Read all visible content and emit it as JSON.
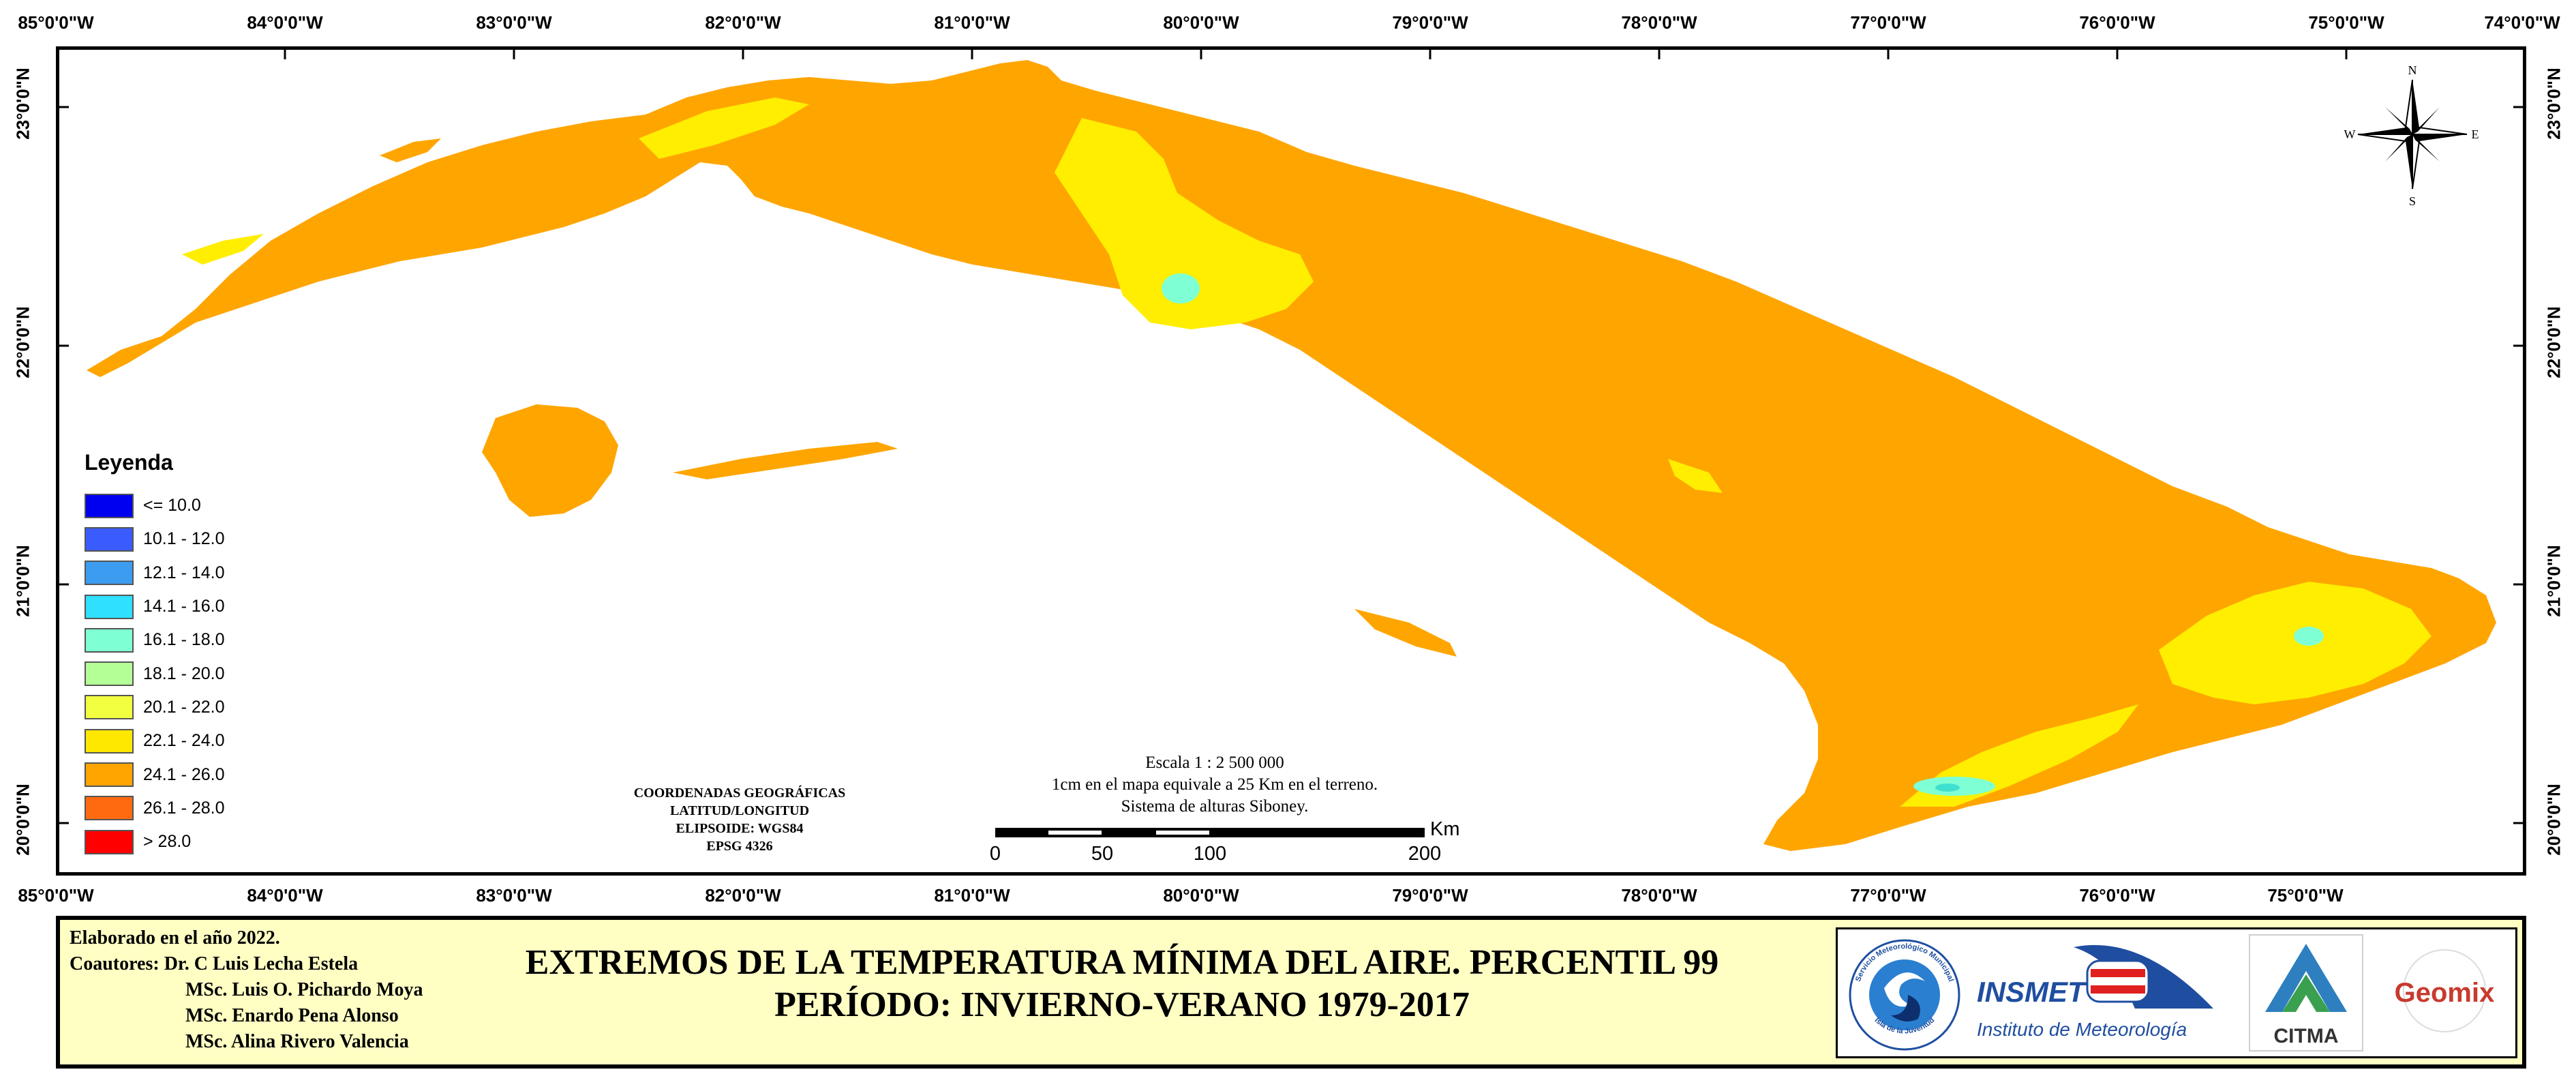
{
  "map": {
    "top_longitudes": [
      "85°0'0\"W",
      "84°0'0\"W",
      "83°0'0\"W",
      "82°0'0\"W",
      "81°0'0\"W",
      "80°0'0\"W",
      "79°0'0\"W",
      "78°0'0\"W",
      "77°0'0\"W",
      "76°0'0\"W",
      "75°0'0\"W",
      "74°0'0\"W"
    ],
    "bottom_longitudes": [
      "85°0'0\"W",
      "84°0'0\"W",
      "83°0'0\"W",
      "82°0'0\"W",
      "81°0'0\"W",
      "80°0'0\"W",
      "79°0'0\"W",
      "78°0'0\"W",
      "77°0'0\"W",
      "76°0'0\"W",
      "75°0'0\"W"
    ],
    "latitudes": [
      "23°0'0\"N",
      "22°0'0\"N",
      "21°0'0\"N",
      "20°0'0\"N"
    ],
    "colors": {
      "land_base": "#ffa500",
      "land_highland": "#ffee00",
      "land_cool": "#7fffd4",
      "land_coolest": "#40e0d0",
      "water": "#ffffff",
      "frame": "#000000"
    },
    "north_arrow": {
      "n": "N",
      "s": "S",
      "e": "E",
      "w": "W",
      "icon": "compass-rose-icon"
    }
  },
  "legend": {
    "title": "Leyenda",
    "items": [
      {
        "label": "<= 10.0",
        "color": "#0000f0"
      },
      {
        "label": "10.1 - 12.0",
        "color": "#3a5cff"
      },
      {
        "label": "12.1 - 14.0",
        "color": "#3c9cf0"
      },
      {
        "label": "14.1 - 16.0",
        "color": "#30e0ff"
      },
      {
        "label": "16.1 - 18.0",
        "color": "#7fffd4"
      },
      {
        "label": "18.1 - 20.0",
        "color": "#b4ff96"
      },
      {
        "label": "20.1 - 22.0",
        "color": "#f2ff40"
      },
      {
        "label": "22.1 - 24.0",
        "color": "#ffe800"
      },
      {
        "label": "24.1 - 26.0",
        "color": "#ffa500"
      },
      {
        "label": "26.1 - 28.0",
        "color": "#ff6a10"
      },
      {
        "label": "> 28.0",
        "color": "#ff0000"
      }
    ]
  },
  "coordinate_info": {
    "line1": "COORDENADAS GEOGRÁFICAS",
    "line2": "LATITUD/LONGITUD",
    "line3": "ELIPSOIDE: WGS84",
    "line4": "EPSG 4326"
  },
  "scale": {
    "line1": "Escala 1 : 2 500 000",
    "line2": "1cm en el mapa equivale a 25 Km en el terreno.",
    "line3": "Sistema de alturas Siboney.",
    "ticks": [
      "0",
      "50",
      "100",
      "200"
    ],
    "unit": "Km"
  },
  "footer": {
    "elaborated": "Elaborado en el año 2022.",
    "coauthors_label": "Coautores: Dr. C Luis Lecha Estela",
    "coauthors": [
      "MSc. Luis O. Pichardo Moya",
      "MSc. Enardo Pena Alonso",
      "MSc. Alina Rivero Valencia"
    ],
    "title_line1": "EXTREMOS DE LA TEMPERATURA MÍNIMA DEL AIRE. PERCENTIL 99",
    "title_line2": "PERÍODO: INVIERNO-VERANO 1979-2017",
    "background_color": "#ffffc4"
  },
  "logos": {
    "smi_text_top": "Servicio Meteorológico Municipal",
    "smi_text_bottom": "Isla de la Juventud",
    "insmet_name": "INSMET",
    "insmet_subtitle": "Instituto de Meteorología",
    "citma_name": "CITMA",
    "geomix_name": "Geomix"
  }
}
